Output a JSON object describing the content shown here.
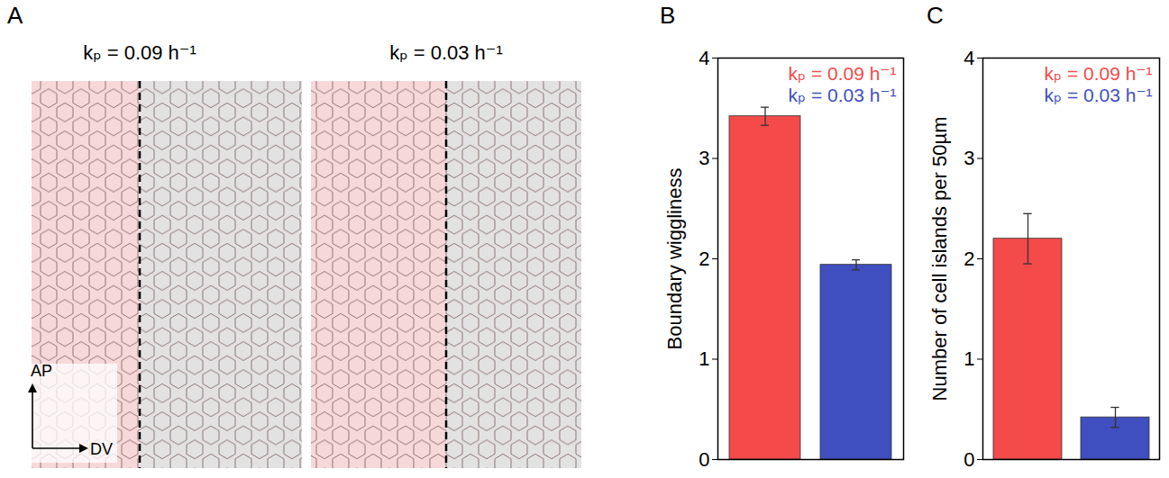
{
  "panel_a": {
    "letter": "A",
    "titles": [
      "kₚ = 0.09 h⁻¹",
      "kₚ = 0.03 h⁻¹"
    ],
    "axis_labels": {
      "vertical": "AP",
      "horizontal": "DV"
    }
  },
  "chart_data": [
    {
      "letter": "B",
      "type": "bar",
      "categories": [
        null,
        null
      ],
      "values": [
        3.42,
        1.94
      ],
      "errors": [
        0.09,
        0.05
      ],
      "colors": [
        "#f44a4a",
        "#3f4fbf"
      ],
      "ylabel": "Boundary wiggliness",
      "ylim": [
        0,
        4
      ],
      "yticks": [
        0,
        1,
        2,
        3,
        4
      ],
      "annotations": [
        {
          "text": "kₚ = 0.09 h⁻¹",
          "color": "#f44a4a"
        },
        {
          "text": "kₚ = 0.03 h⁻¹",
          "color": "#3f4fbf"
        }
      ]
    },
    {
      "letter": "C",
      "type": "bar",
      "categories": [
        null,
        null
      ],
      "values": [
        2.2,
        0.42
      ],
      "errors": [
        0.25,
        0.1
      ],
      "colors": [
        "#f44a4a",
        "#3f4fbf"
      ],
      "ylabel": "Number of cell islands per 50µm",
      "ylim": [
        0,
        4
      ],
      "yticks": [
        0,
        1,
        2,
        3,
        4
      ],
      "annotations": [
        {
          "text": "kₚ = 0.09 h⁻¹",
          "color": "#f44a4a"
        },
        {
          "text": "kₚ = 0.03 h⁻¹",
          "color": "#3f4fbf"
        }
      ]
    }
  ]
}
